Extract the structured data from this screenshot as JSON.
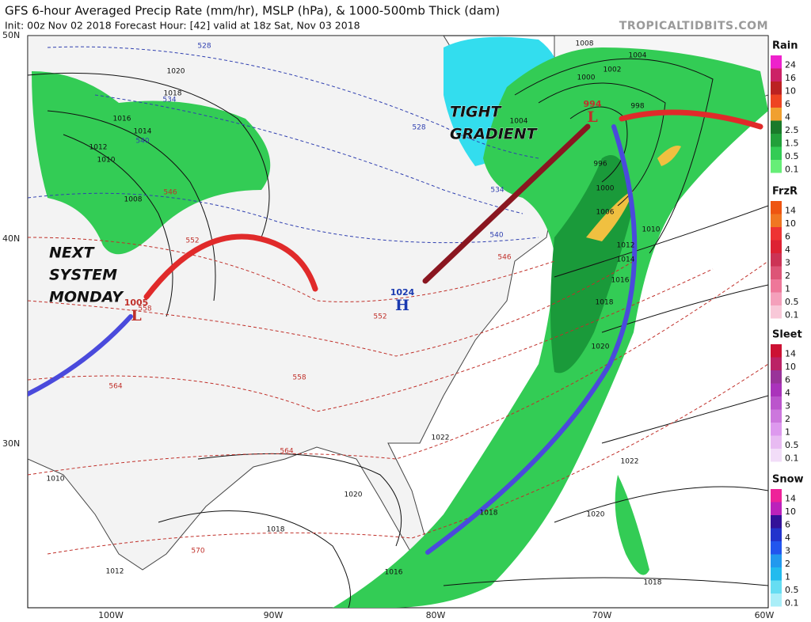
{
  "header": {
    "title": "GFS 6-hour Averaged Precip Rate (mm/hr), MSLP (hPa), & 1000-500mb Thick (dam)",
    "subtitle": "Init: 00z Nov 02 2018   Forecast Hour: [42]   valid at 18z Sat, Nov 03 2018",
    "source": "TROPICALTIDBITS.COM"
  },
  "map": {
    "lat_labels": [
      "50N",
      "40N",
      "30N"
    ],
    "lon_labels": [
      "100W",
      "90W",
      "80W",
      "70W",
      "60W"
    ],
    "annotations": [
      {
        "lines": [
          "TIGHT",
          "GRADIENT"
        ]
      },
      {
        "lines": [
          "NEXT",
          "SYSTEM",
          "MONDAY"
        ]
      }
    ],
    "pressure_centers": [
      {
        "letter": "L",
        "value": "994"
      },
      {
        "letter": "H",
        "value": "1024"
      },
      {
        "letter": "L",
        "value": "1005"
      }
    ],
    "isobar_labels": [
      "1020",
      "1018",
      "1016",
      "1014",
      "1012",
      "1010",
      "1008",
      "1008",
      "1004",
      "1002",
      "1000",
      "998",
      "996",
      "1004",
      "1000",
      "1006",
      "1010",
      "1012",
      "1014",
      "1016",
      "1018",
      "1020",
      "1022",
      "1022",
      "1020",
      "1020",
      "1018",
      "1018",
      "1016",
      "1018",
      "1012",
      "1010"
    ],
    "thickness_labels": [
      "528",
      "534",
      "540",
      "546",
      "552",
      "558",
      "564",
      "570",
      "528",
      "534",
      "540",
      "546",
      "552",
      "558",
      "564"
    ]
  },
  "legend": [
    {
      "title": "Rain",
      "labels": [
        "24",
        "16",
        "10",
        "6",
        "4",
        "2.5",
        "1.5",
        "0.5",
        "0.1"
      ]
    },
    {
      "title": "FrzR",
      "labels": [
        "14",
        "10",
        "6",
        "4",
        "3",
        "2",
        "1",
        "0.5",
        "0.1"
      ]
    },
    {
      "title": "Sleet",
      "labels": [
        "14",
        "10",
        "6",
        "4",
        "3",
        "2",
        "1",
        "0.5",
        "0.1"
      ]
    },
    {
      "title": "Snow",
      "labels": [
        "14",
        "10",
        "6",
        "4",
        "3",
        "2",
        "1",
        "0.5",
        "0.1"
      ]
    }
  ]
}
